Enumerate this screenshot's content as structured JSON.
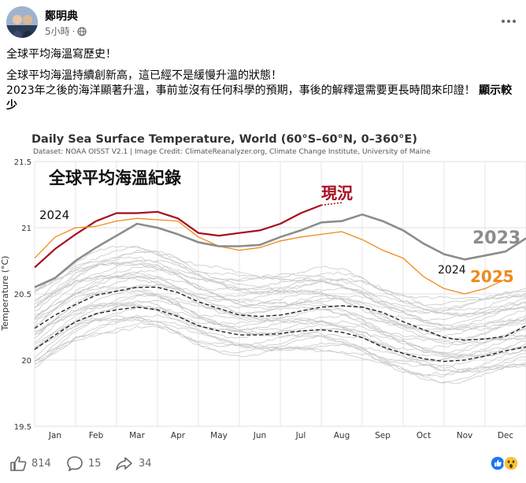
{
  "post": {
    "author": "鄭明典",
    "time": "5小時",
    "dot": "·",
    "line1": "全球平均海溫寫歷史！",
    "line2": "全球平均海溫持續創新高，這已經不是緩慢升溫的狀態！",
    "line3a": "2023年之後的海洋顯著升溫，事前並沒有任何科學的預期，事後的解釋還需要更長時間來印證！",
    "line3b": "顯示較少"
  },
  "icons": [
    "globe-icon",
    "more-icon",
    "like-icon",
    "comment-icon",
    "share-icon",
    "like-reaction-icon",
    "wow-reaction-icon"
  ],
  "footer": {
    "likes": "814",
    "comments": "15",
    "shares": "34"
  },
  "colors": {
    "line2024": "#a50e1f",
    "line2025": "#ef8a1c",
    "line2023": "#8c8c8c",
    "grey": "#c8c8c8",
    "link": "#050505"
  },
  "chart_data": {
    "type": "line",
    "title": "Daily Sea Surface Temperature, World (60°S–60°N, 0–360°E)",
    "subtitle": "Dataset: NOAA OISST V2.1 | Image Credit: ClimateReanalyzer.org, Climate Change Institute, University of Maine",
    "inner_title": "全球平均海溫紀錄",
    "ylabel": "Temperature (°C)",
    "ylim": [
      19.5,
      21.5
    ],
    "yticks": [
      "21.5",
      "21",
      "20.5",
      "20",
      "19.5"
    ],
    "months": [
      "Jan",
      "Feb",
      "Mar",
      "Apr",
      "May",
      "Jun",
      "Jul",
      "Aug",
      "Sep",
      "Oct",
      "Nov",
      "Dec"
    ],
    "annotations": {
      "now": "現況",
      "y2024": "2024",
      "y2023": "2023",
      "y2024b": "2024",
      "y2025": "2025"
    },
    "series": [
      {
        "name": "2024",
        "x": [
          0,
          0.5,
          1.0,
          1.5,
          2.0,
          2.5,
          3.0,
          3.5,
          4.0,
          4.5,
          5.0,
          5.5,
          6.0,
          6.5,
          7.0
        ],
        "y": [
          20.7,
          20.84,
          20.95,
          21.05,
          21.11,
          21.11,
          21.12,
          21.07,
          20.96,
          20.94,
          20.96,
          20.98,
          21.03,
          21.11,
          21.17
        ]
      },
      {
        "name": "2025",
        "x": [
          0,
          0.5,
          1.0,
          1.5,
          2.0,
          2.5,
          3.0,
          3.5,
          4.0,
          4.5,
          5.0,
          5.5,
          6.0,
          6.5,
          7.0,
          7.5,
          8.0,
          8.5,
          9.0,
          9.5,
          10.0,
          10.5,
          11.0,
          11.5
        ],
        "y": [
          20.77,
          20.93,
          21.0,
          21.01,
          21.05,
          21.07,
          21.06,
          21.05,
          20.93,
          20.86,
          20.83,
          20.85,
          20.9,
          20.93,
          20.95,
          20.97,
          20.91,
          20.83,
          20.77,
          20.63,
          20.54,
          20.5,
          20.54,
          20.61
        ]
      },
      {
        "name": "2023",
        "x": [
          0,
          0.5,
          1.0,
          1.5,
          2.0,
          2.5,
          3.0,
          3.5,
          4.0,
          4.5,
          5.0,
          5.5,
          6.0,
          6.5,
          7.0,
          7.5,
          8.0,
          8.5,
          9.0,
          9.5,
          10.0,
          10.5,
          11.0,
          11.5,
          12.0
        ],
        "y": [
          20.55,
          20.62,
          20.75,
          20.85,
          20.94,
          21.03,
          21.0,
          20.95,
          20.89,
          20.86,
          20.86,
          20.87,
          20.93,
          20.98,
          21.04,
          21.05,
          21.1,
          21.05,
          20.98,
          20.88,
          20.8,
          20.76,
          20.79,
          20.82,
          20.92
        ]
      },
      {
        "name": "",
        "x": [
          0,
          0.5,
          1.0,
          1.5,
          2.0,
          2.5,
          3.0,
          3.5,
          4.0,
          4.5,
          5.0,
          5.5,
          6.0,
          6.5,
          7.0,
          7.5,
          8.0,
          8.5,
          9.0,
          9.5,
          10.0,
          10.5,
          11.0,
          11.5,
          12.0
        ],
        "y": [
          20.24,
          20.34,
          20.42,
          20.49,
          20.52,
          20.55,
          20.55,
          20.51,
          20.44,
          20.39,
          20.34,
          20.33,
          20.34,
          20.37,
          20.4,
          20.41,
          20.4,
          20.36,
          20.29,
          20.23,
          20.17,
          20.15,
          20.16,
          20.18,
          20.26
        ]
      },
      {
        "name": "",
        "x": [
          0,
          0.5,
          1.0,
          1.5,
          2.0,
          2.5,
          3.0,
          3.5,
          4.0,
          4.5,
          5.0,
          5.5,
          6.0,
          6.5,
          7.0,
          7.5,
          8.0,
          8.5,
          9.0,
          9.5,
          10.0,
          10.5,
          11.0,
          11.5,
          12.0
        ],
        "y": [
          20.08,
          20.19,
          20.29,
          20.35,
          20.38,
          20.4,
          20.38,
          20.33,
          20.26,
          20.22,
          20.19,
          20.19,
          20.2,
          20.22,
          20.23,
          20.21,
          20.17,
          20.1,
          20.05,
          20.01,
          19.99,
          20.0,
          20.03,
          20.07,
          20.1
        ]
      }
    ]
  }
}
